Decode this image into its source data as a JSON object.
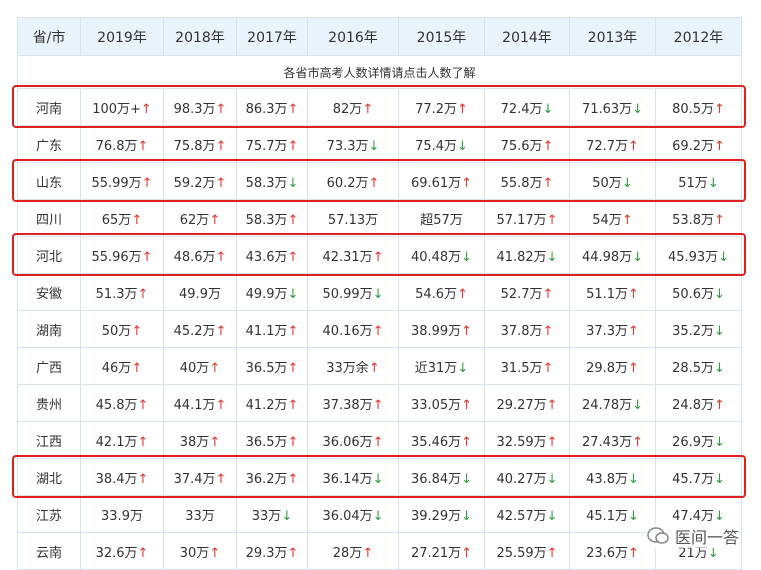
{
  "table": {
    "header": [
      "省/市",
      "2019年",
      "2018年",
      "2017年",
      "2016年",
      "2015年",
      "2014年",
      "2013年",
      "2012年"
    ],
    "banner": "各省市高考人数详情请点击人数了解",
    "arrow_colors": {
      "↑": "#e3342f",
      "↓": "#2f9a3f"
    },
    "highlight_color": "#e02020",
    "rows": [
      {
        "province": "河南",
        "highlight": true,
        "cells": [
          {
            "text": "100万+",
            "arrow": "↑"
          },
          {
            "text": "98.3万",
            "arrow": "↑"
          },
          {
            "text": "86.3万",
            "arrow": "↑"
          },
          {
            "text": "82万",
            "arrow": "↑"
          },
          {
            "text": "77.2万",
            "arrow": "↑"
          },
          {
            "text": "72.4万",
            "arrow": "↓"
          },
          {
            "text": "71.63万",
            "arrow": "↓"
          },
          {
            "text": "80.5万",
            "arrow": "↑"
          }
        ]
      },
      {
        "province": "广东",
        "highlight": false,
        "cells": [
          {
            "text": "76.8万",
            "arrow": "↑"
          },
          {
            "text": "75.8万",
            "arrow": "↑"
          },
          {
            "text": "75.7万",
            "arrow": "↑"
          },
          {
            "text": "73.3万",
            "arrow": "↓"
          },
          {
            "text": "75.4万",
            "arrow": "↓"
          },
          {
            "text": "75.6万",
            "arrow": "↑"
          },
          {
            "text": "72.7万",
            "arrow": "↑"
          },
          {
            "text": "69.2万",
            "arrow": "↑"
          }
        ]
      },
      {
        "province": "山东",
        "highlight": true,
        "cells": [
          {
            "text": "55.99万",
            "arrow": "↑"
          },
          {
            "text": "59.2万",
            "arrow": "↑"
          },
          {
            "text": "58.3万",
            "arrow": "↓"
          },
          {
            "text": "60.2万",
            "arrow": "↑"
          },
          {
            "text": "69.61万",
            "arrow": "↑"
          },
          {
            "text": "55.8万",
            "arrow": "↑"
          },
          {
            "text": "50万",
            "arrow": "↓"
          },
          {
            "text": "51万",
            "arrow": "↓"
          }
        ]
      },
      {
        "province": "四川",
        "highlight": false,
        "cells": [
          {
            "text": "65万",
            "arrow": "↑"
          },
          {
            "text": "62万",
            "arrow": "↑"
          },
          {
            "text": "58.3万",
            "arrow": "↑"
          },
          {
            "text": "57.13万"
          },
          {
            "text": "超57万"
          },
          {
            "text": "57.17万",
            "arrow": "↑"
          },
          {
            "text": "54万",
            "arrow": "↑"
          },
          {
            "text": "53.8万",
            "arrow": "↑"
          }
        ]
      },
      {
        "province": "河北",
        "highlight": true,
        "cells": [
          {
            "text": "55.96万",
            "arrow": "↑"
          },
          {
            "text": "48.6万",
            "arrow": "↑"
          },
          {
            "text": "43.6万",
            "arrow": "↑"
          },
          {
            "text": "42.31万",
            "arrow": "↑"
          },
          {
            "text": "40.48万",
            "arrow": "↓"
          },
          {
            "text": "41.82万",
            "arrow": "↓"
          },
          {
            "text": "44.98万",
            "arrow": "↓"
          },
          {
            "text": "45.93万",
            "arrow": "↓"
          }
        ]
      },
      {
        "province": "安徽",
        "highlight": false,
        "cells": [
          {
            "text": "51.3万",
            "arrow": "↑"
          },
          {
            "text": "49.9万"
          },
          {
            "text": "49.9万",
            "arrow": "↓"
          },
          {
            "text": "50.99万",
            "arrow": "↓"
          },
          {
            "text": "54.6万",
            "arrow": "↑"
          },
          {
            "text": "52.7万",
            "arrow": "↑"
          },
          {
            "text": "51.1万",
            "arrow": "↑"
          },
          {
            "text": "50.6万",
            "arrow": "↓"
          }
        ]
      },
      {
        "province": "湖南",
        "highlight": false,
        "cells": [
          {
            "text": "50万",
            "arrow": "↑"
          },
          {
            "text": "45.2万",
            "arrow": "↑"
          },
          {
            "text": "41.1万",
            "arrow": "↑"
          },
          {
            "text": "40.16万",
            "arrow": "↑"
          },
          {
            "text": "38.99万",
            "arrow": "↑"
          },
          {
            "text": "37.8万",
            "arrow": "↑"
          },
          {
            "text": "37.3万",
            "arrow": "↑"
          },
          {
            "text": "35.2万",
            "arrow": "↓"
          }
        ]
      },
      {
        "province": "广西",
        "highlight": false,
        "cells": [
          {
            "text": "46万",
            "arrow": "↑"
          },
          {
            "text": "40万",
            "arrow": "↑"
          },
          {
            "text": "36.5万",
            "arrow": "↑"
          },
          {
            "text": "33万余",
            "arrow": "↑"
          },
          {
            "text": "近31万",
            "arrow": "↓"
          },
          {
            "text": "31.5万",
            "arrow": "↑"
          },
          {
            "text": "29.8万",
            "arrow": "↑"
          },
          {
            "text": "28.5万",
            "arrow": "↓"
          }
        ]
      },
      {
        "province": "贵州",
        "highlight": false,
        "cells": [
          {
            "text": "45.8万",
            "arrow": "↑"
          },
          {
            "text": "44.1万",
            "arrow": "↑"
          },
          {
            "text": "41.2万",
            "arrow": "↑"
          },
          {
            "text": "37.38万",
            "arrow": "↑"
          },
          {
            "text": "33.05万",
            "arrow": "↑"
          },
          {
            "text": "29.27万",
            "arrow": "↑"
          },
          {
            "text": "24.78万",
            "arrow": "↓"
          },
          {
            "text": "24.8万",
            "arrow": "↑"
          }
        ]
      },
      {
        "province": "江西",
        "highlight": false,
        "cells": [
          {
            "text": "42.1万",
            "arrow": "↑"
          },
          {
            "text": "38万",
            "arrow": "↑"
          },
          {
            "text": "36.5万",
            "arrow": "↑"
          },
          {
            "text": "36.06万",
            "arrow": "↑"
          },
          {
            "text": "35.46万",
            "arrow": "↑"
          },
          {
            "text": "32.59万",
            "arrow": "↑"
          },
          {
            "text": "27.43万",
            "arrow": "↑"
          },
          {
            "text": "26.9万",
            "arrow": "↓"
          }
        ]
      },
      {
        "province": "湖北",
        "highlight": true,
        "cells": [
          {
            "text": "38.4万",
            "arrow": "↑"
          },
          {
            "text": "37.4万",
            "arrow": "↑"
          },
          {
            "text": "36.2万",
            "arrow": "↑"
          },
          {
            "text": "36.14万",
            "arrow": "↓"
          },
          {
            "text": "36.84万",
            "arrow": "↓"
          },
          {
            "text": "40.27万",
            "arrow": "↓"
          },
          {
            "text": "43.8万",
            "arrow": "↓"
          },
          {
            "text": "45.7万",
            "arrow": "↓"
          }
        ]
      },
      {
        "province": "江苏",
        "highlight": false,
        "cells": [
          {
            "text": "33.9万"
          },
          {
            "text": "33万"
          },
          {
            "text": "33万",
            "arrow": "↓"
          },
          {
            "text": "36.04万",
            "arrow": "↓"
          },
          {
            "text": "39.29万",
            "arrow": "↓"
          },
          {
            "text": "42.57万",
            "arrow": "↓"
          },
          {
            "text": "45.1万",
            "arrow": "↓"
          },
          {
            "text": "47.4万",
            "arrow": "↓"
          }
        ]
      },
      {
        "province": "云南",
        "highlight": false,
        "cells": [
          {
            "text": "32.6万",
            "arrow": "↑"
          },
          {
            "text": "30万",
            "arrow": "↑"
          },
          {
            "text": "29.3万",
            "arrow": "↑"
          },
          {
            "text": "28万",
            "arrow": "↑"
          },
          {
            "text": "27.21万",
            "arrow": "↑"
          },
          {
            "text": "25.59万",
            "arrow": "↑"
          },
          {
            "text": "23.6万",
            "arrow": "↑"
          },
          {
            "text": "21万",
            "arrow": "↓"
          }
        ]
      }
    ]
  },
  "watermark": "医间一答"
}
